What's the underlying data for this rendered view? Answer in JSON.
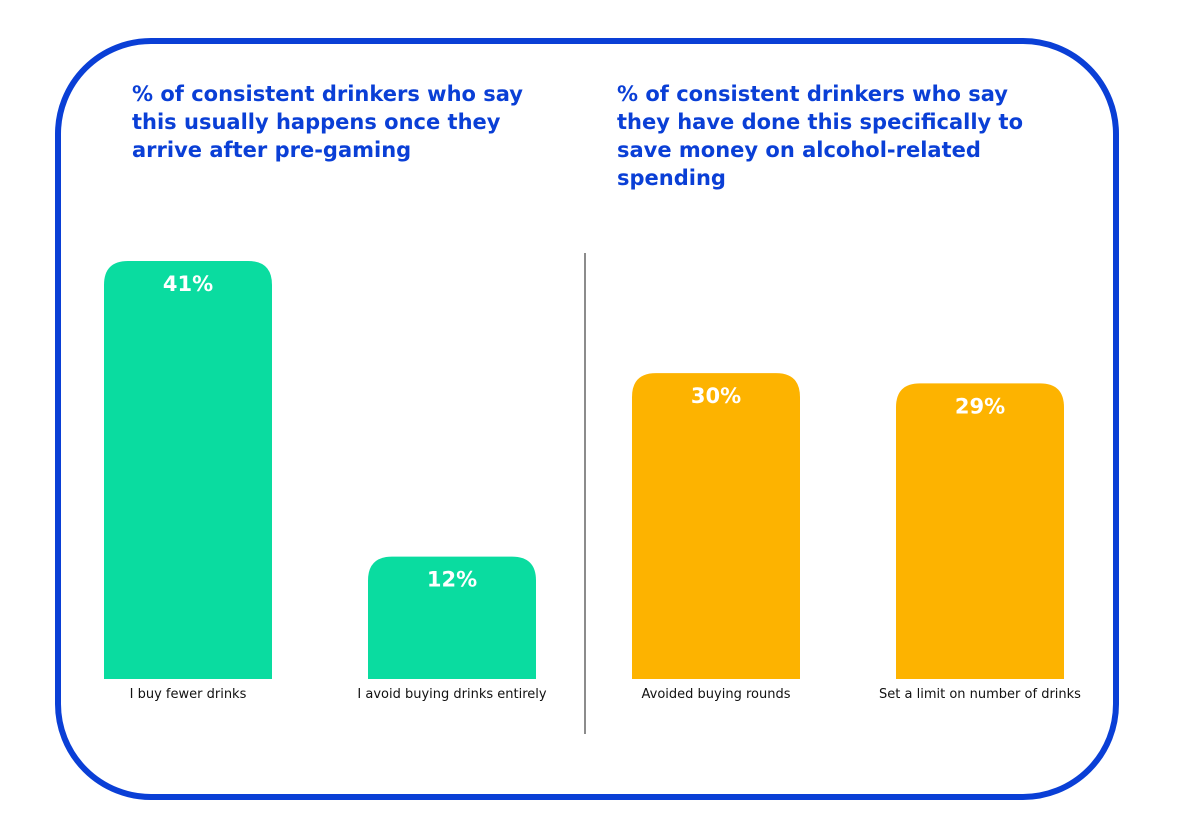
{
  "colors": {
    "frame": "#0a3fd6",
    "title": "#0a3fd6",
    "left_bars": "#0adca0",
    "right_bars": "#fdb300",
    "divider": "#666666"
  },
  "chart_data": [
    {
      "type": "bar",
      "title": "% of consistent drinkers who say this usually happens once they arrive after pre-gaming",
      "categories": [
        "I buy fewer drinks",
        "I avoid buying drinks entirely"
      ],
      "values": [
        41,
        12
      ],
      "value_labels": [
        "41%",
        "12%"
      ],
      "color": "#0adca0",
      "ylim": [
        0,
        41
      ],
      "grid": false
    },
    {
      "type": "bar",
      "title": "% of consistent drinkers who say they have done this specifically to save money on alcohol-related spending",
      "categories": [
        "Avoided buying rounds",
        "Set a limit on number of drinks"
      ],
      "values": [
        30,
        29
      ],
      "value_labels": [
        "30%",
        "29%"
      ],
      "color": "#fdb300",
      "ylim": [
        0,
        41
      ],
      "grid": false
    }
  ]
}
